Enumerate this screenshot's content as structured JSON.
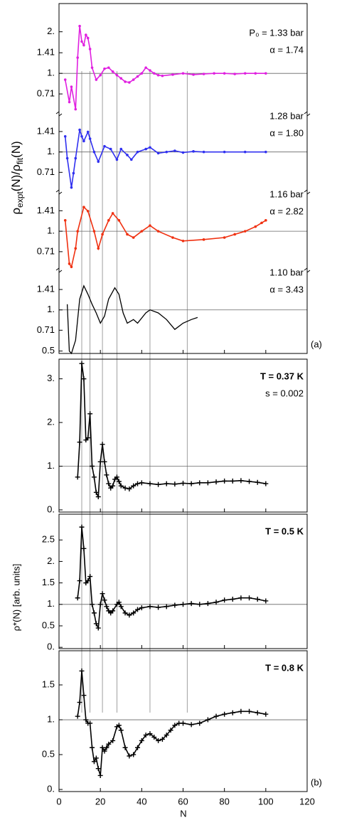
{
  "vlines": [
    11,
    15,
    21,
    28,
    44,
    62
  ],
  "chart_data": [
    {
      "type": "line",
      "color": "#e020e0",
      "marker": "dot",
      "log": true,
      "ylim": [
        0.51,
        3.2
      ],
      "yticks": [
        {
          "value": 2,
          "label": "2."
        },
        1.41,
        {
          "value": 1,
          "label": "1."
        },
        0.71
      ],
      "hline": 1,
      "annotations": [
        "P₀ = 1.33 bar",
        "α = 1.74"
      ],
      "ylabel_parts": [
        "ρ",
        "expt",
        "(N)/ρ",
        "fit",
        "(N)"
      ],
      "x": [
        3,
        5,
        6,
        8,
        9,
        10,
        11,
        12,
        13,
        14,
        15,
        16,
        18,
        20,
        22,
        24,
        26,
        28,
        30,
        32,
        34,
        36,
        38,
        40,
        42,
        44,
        46,
        48,
        50,
        55,
        60,
        65,
        70,
        75,
        80,
        85,
        90,
        95,
        100
      ],
      "values": [
        0.9,
        0.62,
        0.8,
        0.55,
        1.3,
        2.2,
        1.7,
        1.6,
        1.9,
        1.8,
        1.5,
        1.1,
        0.9,
        0.97,
        1.08,
        1.1,
        1.03,
        0.97,
        0.92,
        0.87,
        0.86,
        0.9,
        0.95,
        1.0,
        1.1,
        1.05,
        1.0,
        0.97,
        0.96,
        0.98,
        1.0,
        0.98,
        0.99,
        1.0,
        1.0,
        0.99,
        1.0,
        1.0,
        1.0
      ]
    },
    {
      "type": "line",
      "color": "#3030f0",
      "marker": "dot",
      "log": true,
      "ylim": [
        0.51,
        1.9
      ],
      "yticks": [
        1.41,
        {
          "value": 1,
          "label": "1."
        },
        0.71
      ],
      "hline": 1,
      "annotations": [
        "1.28 bar",
        "α = 1.80"
      ],
      "x": [
        3,
        4,
        6,
        7,
        8,
        10,
        11,
        12,
        14,
        15,
        17,
        19,
        22,
        25,
        28,
        30,
        33,
        35,
        38,
        42,
        44,
        48,
        52,
        56,
        60,
        65,
        70,
        80,
        90,
        100
      ],
      "values": [
        1.3,
        0.9,
        0.55,
        0.7,
        0.9,
        1.45,
        1.3,
        1.2,
        1.4,
        1.25,
        1.0,
        0.85,
        1.1,
        1.05,
        0.88,
        1.05,
        0.95,
        0.88,
        1.0,
        1.05,
        1.08,
        0.98,
        1.0,
        1.02,
        0.99,
        1.01,
        1.0,
        1.0,
        1.0,
        1.0
      ]
    },
    {
      "type": "line",
      "color": "#f03010",
      "marker": "dot",
      "log": true,
      "ylim": [
        0.52,
        1.93
      ],
      "yticks": [
        1.41,
        {
          "value": 1,
          "label": "1."
        },
        0.71
      ],
      "hline": 1,
      "annotations": [
        "1.16 bar",
        "α = 2.82"
      ],
      "x": [
        3,
        5,
        6,
        8,
        9,
        12,
        14,
        17,
        19,
        21,
        24,
        26,
        29,
        33,
        36,
        40,
        44,
        48,
        55,
        60,
        70,
        80,
        85,
        90,
        95,
        98,
        100
      ],
      "values": [
        1.2,
        0.58,
        0.55,
        0.75,
        1.0,
        1.5,
        1.4,
        1.0,
        0.75,
        0.95,
        1.2,
        1.35,
        1.2,
        0.95,
        0.9,
        1.0,
        1.1,
        1.0,
        0.9,
        0.85,
        0.87,
        0.9,
        0.95,
        1.0,
        1.08,
        1.15,
        1.2
      ]
    },
    {
      "type": "line",
      "color": "#000000",
      "marker": "none",
      "log": true,
      "ylim": [
        0.48,
        1.95
      ],
      "yticks": [
        1.41,
        {
          "value": 1,
          "label": "1."
        },
        0.71,
        0.5
      ],
      "hline": 1,
      "annotations": [
        "1.10 bar",
        "α = 3.43"
      ],
      "panel_label": "(a)",
      "x": [
        4,
        5,
        6,
        8,
        10,
        12,
        14,
        16,
        18,
        20,
        22,
        24,
        27,
        29,
        31,
        33,
        36,
        38,
        42,
        44,
        48,
        52,
        56,
        60,
        64,
        67
      ],
      "values": [
        1.1,
        0.5,
        0.48,
        0.6,
        1.2,
        1.5,
        1.3,
        1.1,
        0.95,
        0.8,
        0.9,
        1.2,
        1.45,
        1.3,
        0.95,
        0.8,
        0.85,
        0.8,
        0.95,
        1.0,
        0.95,
        0.85,
        0.72,
        0.8,
        0.85,
        0.88
      ]
    },
    {
      "type": "line",
      "color": "#000000",
      "marker": "plus",
      "log": false,
      "ylim": [
        -0.05,
        3.45
      ],
      "yticks": [
        {
          "value": 3,
          "label": "3."
        },
        {
          "value": 2,
          "label": "2."
        },
        {
          "value": 1,
          "label": "1."
        },
        {
          "value": 0,
          "label": "0."
        }
      ],
      "hline": 1,
      "annotations": [
        "T = 0.37 K",
        "s = 0.002"
      ],
      "x": [
        9,
        10,
        11,
        12,
        13,
        14,
        15,
        16,
        17,
        18,
        19,
        20,
        21,
        22,
        23,
        24,
        25,
        26,
        27,
        28,
        29,
        30,
        32,
        34,
        36,
        38,
        40,
        44,
        48,
        52,
        56,
        60,
        64,
        68,
        72,
        76,
        80,
        84,
        88,
        92,
        96,
        100
      ],
      "values": [
        0.75,
        1.55,
        3.35,
        3.0,
        1.6,
        1.65,
        2.2,
        1.0,
        0.75,
        0.4,
        0.3,
        1.1,
        1.5,
        1.1,
        0.8,
        0.6,
        0.5,
        0.55,
        0.7,
        0.75,
        0.65,
        0.55,
        0.5,
        0.48,
        0.55,
        0.6,
        0.62,
        0.6,
        0.58,
        0.6,
        0.59,
        0.61,
        0.6,
        0.62,
        0.62,
        0.64,
        0.66,
        0.66,
        0.67,
        0.65,
        0.63,
        0.6
      ]
    },
    {
      "type": "line",
      "color": "#000000",
      "marker": "plus",
      "log": false,
      "ylim": [
        -0.03,
        3.1
      ],
      "yticks": [
        2.5,
        {
          "value": 2,
          "label": "2."
        },
        1.5,
        {
          "value": 1,
          "label": "1."
        },
        0.5,
        {
          "value": 0,
          "label": "0."
        }
      ],
      "hline": 1,
      "annotations": [
        "T = 0.5 K"
      ],
      "ylabel": "ρ*(N) [arb. units]",
      "x": [
        9,
        10,
        11,
        12,
        13,
        14,
        15,
        16,
        17,
        18,
        19,
        20,
        21,
        22,
        23,
        24,
        25,
        26,
        28,
        29,
        30,
        32,
        34,
        36,
        38,
        40,
        44,
        48,
        52,
        56,
        60,
        64,
        68,
        72,
        76,
        80,
        84,
        88,
        92,
        96,
        100
      ],
      "values": [
        1.15,
        1.55,
        2.8,
        2.3,
        1.5,
        1.55,
        1.65,
        1.0,
        0.8,
        0.55,
        0.45,
        1.0,
        1.25,
        1.1,
        0.95,
        0.85,
        0.8,
        0.85,
        1.0,
        1.05,
        0.95,
        0.8,
        0.75,
        0.8,
        0.88,
        0.92,
        0.95,
        0.93,
        0.95,
        0.98,
        1.0,
        1.02,
        1.0,
        1.02,
        1.05,
        1.1,
        1.12,
        1.15,
        1.15,
        1.12,
        1.08
      ]
    },
    {
      "type": "line",
      "color": "#000000",
      "marker": "plus",
      "log": false,
      "ylim": [
        -0.03,
        1.99
      ],
      "yticks": [
        1.5,
        {
          "value": 1,
          "label": "1."
        },
        0.5,
        {
          "value": 0,
          "label": "0."
        }
      ],
      "hline": 1,
      "annotations": [
        "T = 0.8 K"
      ],
      "panel_label": "(b)",
      "xlim": [
        0,
        120
      ],
      "xticks": [
        0,
        20,
        40,
        60,
        80,
        100,
        120
      ],
      "xlabel": "N",
      "x": [
        9,
        10,
        11,
        12,
        13,
        14,
        15,
        16,
        17,
        18,
        19,
        20,
        21,
        22,
        23,
        24,
        26,
        28,
        29,
        30,
        32,
        34,
        36,
        38,
        40,
        42,
        44,
        46,
        48,
        50,
        52,
        54,
        56,
        58,
        60,
        64,
        68,
        72,
        76,
        80,
        84,
        88,
        92,
        96,
        100
      ],
      "values": [
        1.05,
        1.25,
        1.7,
        1.35,
        1.0,
        0.95,
        0.95,
        0.6,
        0.4,
        0.45,
        0.3,
        0.2,
        0.6,
        0.55,
        0.6,
        0.65,
        0.7,
        0.9,
        0.92,
        0.85,
        0.6,
        0.48,
        0.5,
        0.6,
        0.7,
        0.78,
        0.8,
        0.75,
        0.7,
        0.72,
        0.78,
        0.85,
        0.92,
        0.95,
        0.95,
        0.93,
        0.95,
        1.0,
        1.05,
        1.08,
        1.1,
        1.12,
        1.12,
        1.1,
        1.08
      ]
    }
  ]
}
